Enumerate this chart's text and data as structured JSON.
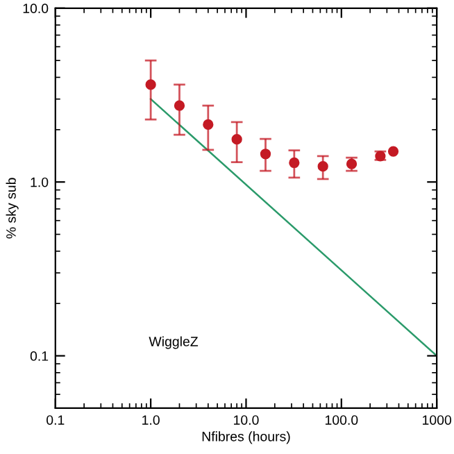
{
  "chart_data": {
    "type": "scatter",
    "xlabel": "Nfibres (hours)",
    "ylabel": "% sky sub",
    "log": "xy",
    "xlim": [
      0.1,
      1000
    ],
    "ylim": [
      0.05,
      10
    ],
    "xticks": [
      {
        "value": 0.1,
        "label": "0.1"
      },
      {
        "value": 1,
        "label": "1.0"
      },
      {
        "value": 10,
        "label": "10.0"
      },
      {
        "value": 100,
        "label": "100.0"
      },
      {
        "value": 1000,
        "label": "1000"
      }
    ],
    "yticks": [
      {
        "value": 0.1,
        "label": "0.1"
      },
      {
        "value": 1,
        "label": "1.0"
      },
      {
        "value": 10,
        "label": "10.0"
      }
    ],
    "grid": false,
    "legend": false,
    "series": [
      {
        "marker": "circle",
        "color": "#c41a24",
        "x": [
          1,
          2,
          4,
          8,
          16,
          32,
          64,
          128,
          256,
          350
        ],
        "values": [
          3.63,
          2.75,
          2.14,
          1.76,
          1.45,
          1.29,
          1.23,
          1.27,
          1.41,
          1.5
        ],
        "errors": [
          [
            2.29,
            5.0
          ],
          [
            1.87,
            3.63
          ],
          [
            1.53,
            2.75
          ],
          [
            1.3,
            2.21
          ],
          [
            1.16,
            1.77
          ],
          [
            1.06,
            1.52
          ],
          [
            1.04,
            1.41
          ],
          [
            1.16,
            1.38
          ],
          [
            1.34,
            1.5
          ],
          null
        ]
      },
      {
        "type": "line",
        "color": "#2a9a6a",
        "x": [
          1,
          1000
        ],
        "values": [
          3.0,
          0.1
        ]
      }
    ],
    "annotations": [
      "WiggleZ"
    ]
  }
}
